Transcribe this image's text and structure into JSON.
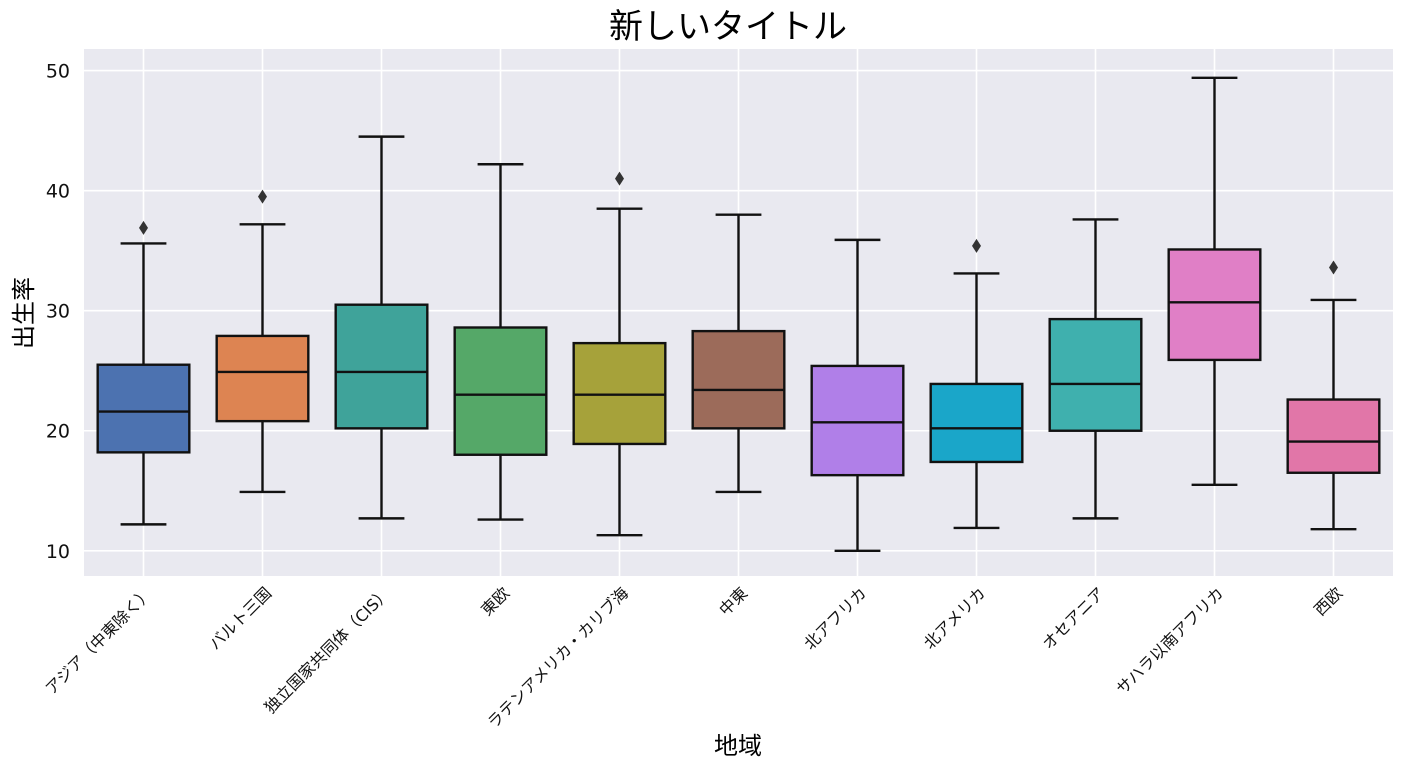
{
  "chart_data": {
    "type": "boxplot",
    "title": "新しいタイトル",
    "xlabel": "地域",
    "ylabel": "出生率",
    "ylim": [
      7.9,
      51.8
    ],
    "yticks": [
      10,
      20,
      30,
      40,
      50
    ],
    "grid": true,
    "background": "#e9e9f0",
    "categories": [
      "アジア（中東除く）",
      "バルト三国",
      "独立国家共同体（CIS）",
      "東欧",
      "ラテンアメリカ・カリブ海",
      "中東",
      "北アフリカ",
      "北アメリカ",
      "オセアニア",
      "サハラ以南アフリカ",
      "西欧"
    ],
    "colors": [
      "#4c72b0",
      "#dd8452",
      "#3fa39a",
      "#55a868",
      "#a6a23a",
      "#9c6b5a",
      "#b07fe8",
      "#1aa6c9",
      "#3fb0ae",
      "#e07fc6",
      "#e176a8"
    ],
    "boxes": [
      {
        "min": 12.2,
        "q1": 18.2,
        "median": 21.6,
        "q3": 25.5,
        "max": 35.6,
        "outliers": [
          36.9
        ]
      },
      {
        "min": 14.9,
        "q1": 20.8,
        "median": 24.9,
        "q3": 27.9,
        "max": 37.2,
        "outliers": [
          39.5
        ]
      },
      {
        "min": 12.7,
        "q1": 20.2,
        "median": 24.9,
        "q3": 30.5,
        "max": 44.5,
        "outliers": []
      },
      {
        "min": 12.6,
        "q1": 18.0,
        "median": 23.0,
        "q3": 28.6,
        "max": 42.2,
        "outliers": []
      },
      {
        "min": 11.3,
        "q1": 18.9,
        "median": 23.0,
        "q3": 27.3,
        "max": 38.5,
        "outliers": [
          41.0
        ]
      },
      {
        "min": 14.9,
        "q1": 20.2,
        "median": 23.4,
        "q3": 28.3,
        "max": 38.0,
        "outliers": []
      },
      {
        "min": 10.0,
        "q1": 16.3,
        "median": 20.7,
        "q3": 25.4,
        "max": 35.9,
        "outliers": []
      },
      {
        "min": 11.9,
        "q1": 17.4,
        "median": 20.2,
        "q3": 23.9,
        "max": 33.1,
        "outliers": [
          35.4
        ]
      },
      {
        "min": 12.7,
        "q1": 20.0,
        "median": 23.9,
        "q3": 29.3,
        "max": 37.6,
        "outliers": []
      },
      {
        "min": 15.5,
        "q1": 25.9,
        "median": 30.7,
        "q3": 35.1,
        "max": 49.4,
        "outliers": []
      },
      {
        "min": 11.8,
        "q1": 16.5,
        "median": 19.1,
        "q3": 22.6,
        "max": 30.9,
        "outliers": [
          33.6
        ]
      }
    ]
  }
}
